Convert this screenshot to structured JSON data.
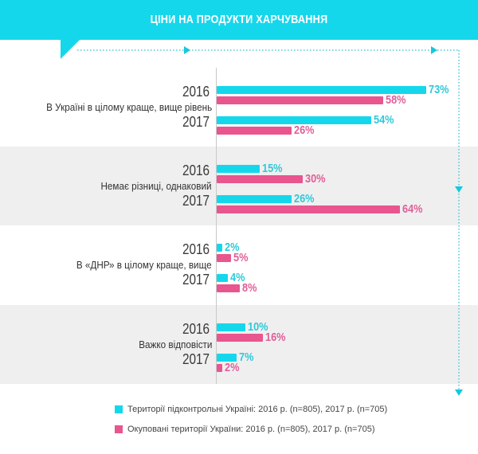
{
  "header": {
    "title": "ЦІНИ НА ПРОДУКТИ ХАРЧУВАННЯ"
  },
  "colors": {
    "controlled": "#15d7ec",
    "occupied": "#e8558f",
    "header": "#15d7ec"
  },
  "chart_data": {
    "type": "bar",
    "orientation": "horizontal",
    "title": "ЦІНИ НА ПРОДУКТИ ХАРЧУВАННЯ",
    "xlabel": "",
    "ylabel": "",
    "xlim": [
      0,
      80
    ],
    "unit": "%",
    "categories": [
      "В Україні в цілому краще, вище рівень",
      "Немає різниці, однаковий",
      "В «ДНР» в цілому краще, вище",
      "Важко відповісти"
    ],
    "years": [
      "2016",
      "2017"
    ],
    "series": [
      {
        "name": "Території підконтрольні Україні:  2016 р. (n=805), 2017 р. (n=705)",
        "color": "#15d7ec",
        "values": {
          "2016": [
            73,
            15,
            2,
            10
          ],
          "2017": [
            54,
            26,
            4,
            7
          ]
        }
      },
      {
        "name": "Окуповані території України: 2016 р. (n=805), 2017 р. (n=705)",
        "color": "#e8558f",
        "values": {
          "2016": [
            58,
            30,
            5,
            16
          ],
          "2017": [
            26,
            64,
            8,
            2
          ]
        }
      }
    ],
    "legend_position": "bottom"
  },
  "groups": [
    {
      "label": "В Україні в цілому краще, вище рівень",
      "y2016": "2016",
      "y2017": "2017",
      "v2016c": "73%",
      "v2016p": "58%",
      "v2017c": "54%",
      "v2017p": "26%"
    },
    {
      "label": "Немає різниці, однаковий",
      "y2016": "2016",
      "y2017": "2017",
      "v2016c": "15%",
      "v2016p": "30%",
      "v2017c": "26%",
      "v2017p": "64%"
    },
    {
      "label": "В «ДНР» в цілому краще, вище",
      "y2016": "2016",
      "y2017": "2017",
      "v2016c": "2%",
      "v2016p": "5%",
      "v2017c": "4%",
      "v2017p": "8%"
    },
    {
      "label": "Важко відповісти",
      "y2016": "2016",
      "y2017": "2017",
      "v2016c": "10%",
      "v2016p": "16%",
      "v2017c": "7%",
      "v2017p": "2%"
    }
  ],
  "legend": [
    {
      "label": "Території підконтрольні Україні:  2016 р. (n=805), 2017 р. (n=705)"
    },
    {
      "label": "Окуповані території України: 2016 р. (n=805), 2017 р. (n=705)"
    }
  ]
}
